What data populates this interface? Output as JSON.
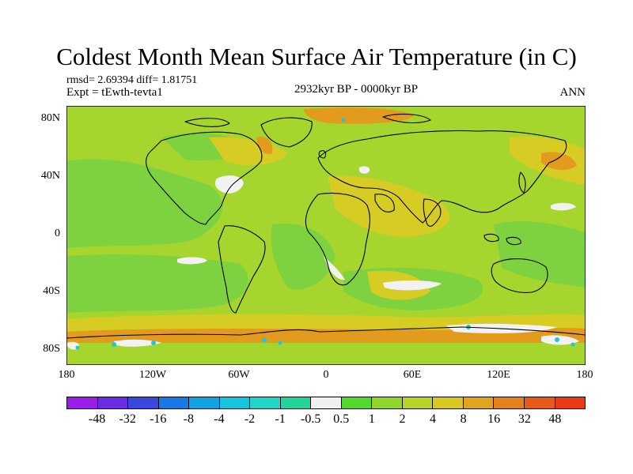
{
  "figure": {
    "title": "Coldest Month Mean Surface Air Temperature (in C)",
    "stats": "rmsd= 2.69394 diff= 1.81751",
    "experiment": "Expt = tEwth-tevta1",
    "period": "2932kyr BP - 0000kyr BP",
    "season": "ANN"
  },
  "map": {
    "projection": "cylindrical-equidistant",
    "lon_range": [
      -180,
      180
    ],
    "lat_range": [
      -90,
      90
    ],
    "y_ticks": [
      {
        "label": "80N",
        "lat": 80
      },
      {
        "label": "40N",
        "lat": 40
      },
      {
        "label": "0",
        "lat": 0
      },
      {
        "label": "40S",
        "lat": -40
      },
      {
        "label": "80S",
        "lat": -80
      }
    ],
    "x_ticks": [
      {
        "label": "180",
        "lon": -180
      },
      {
        "label": "120W",
        "lon": -120
      },
      {
        "label": "60W",
        "lon": -60
      },
      {
        "label": "0",
        "lon": 0
      },
      {
        "label": "60E",
        "lon": 60
      },
      {
        "label": "120E",
        "lon": 120
      },
      {
        "label": "180",
        "lon": 180
      }
    ],
    "field_colors": {
      "background": "#a6d62e",
      "light_green": "#7fd23f",
      "yellow": "#d7cc23",
      "orange": "#e39b1e",
      "white": "#f2f2f2",
      "cyan": "#22c7d6",
      "coast": "#000000"
    }
  },
  "colorbar": {
    "colors": [
      "#9b1ee6",
      "#6a2ee0",
      "#3a48e0",
      "#1b79e6",
      "#12a3e6",
      "#16c4df",
      "#1fd6c8",
      "#20d49c",
      "#f0f0f0",
      "#55d82b",
      "#8fd52a",
      "#b9d426",
      "#d9c91f",
      "#e0a51b",
      "#e5801a",
      "#e85a18",
      "#e83a16"
    ],
    "labels": [
      "-48",
      "-32",
      "-16",
      "-8",
      "-4",
      "-2",
      "-1",
      "-0.5",
      "0.5",
      "1",
      "2",
      "4",
      "8",
      "16",
      "32",
      "48"
    ]
  }
}
